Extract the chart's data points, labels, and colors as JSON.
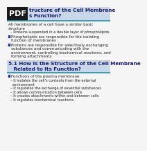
{
  "bg_color": "#f5f5f5",
  "pdf_box_color": "#1a1a1a",
  "pdf_text": "PDF",
  "header_line1": "tructure of the Cell Membrane",
  "header_line2": "s Function?",
  "header_bg": "#c8d8e8",
  "header_text_color": "#1a1a6e",
  "teal_color": "#2090b0",
  "bullet_color": "#1a3a8a",
  "text_color": "#222222",
  "small_text_color": "#333333",
  "divider_color": "#aaaaaa",
  "section2_line1": "5.1 How Is the Structure of the Cell Membrane",
  "section2_line2": "   Related to Its Function?",
  "section2_bg": "#c8d8e8",
  "body_intro": "All membranes of a cell have a similar basic",
  "body_intro2": "structure",
  "sub1": "– Proteins suspended in a double layer of phospholipids",
  "bullet1_l1": "Phospholipids are responsible for the isolating",
  "bullet1_l2": "function of membranes",
  "bullet2_l1": "Proteins are responsible for selectively exchanging",
  "bullet2_l2": "substances and communicating with the",
  "bullet2_l3": "environment, controlling biochemical reactions, and",
  "bullet2_l4": "forming attachments",
  "s2_intro": "Functions of the plasma membrane",
  "s2_subs": [
    "– It isolates the cell's contents from the external",
    "   environment",
    "– It regulates the exchange of essential substances",
    "– It allows communication between cells",
    "– It creates attachments within and between cells",
    "– It regulates biochemical reactions"
  ],
  "fs_header": 5.2,
  "fs_body": 4.0,
  "fs_sub": 3.7
}
